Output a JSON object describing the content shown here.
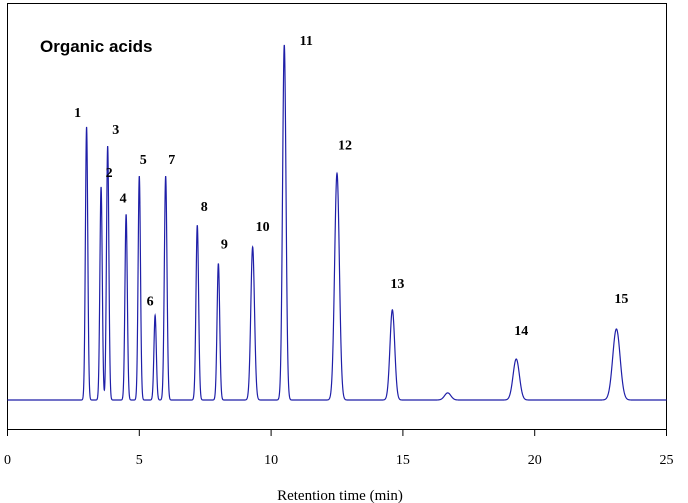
{
  "chart_data": {
    "type": "line",
    "title": "Organic acids",
    "xlabel": "Retention time  (min)",
    "ylabel": "",
    "xlim": [
      0,
      25
    ],
    "ylim": [
      0,
      1.34
    ],
    "x_ticks": [
      "0",
      "5",
      "10",
      "15",
      "20",
      "25"
    ],
    "grid": false,
    "line_color": "#1f1fa8",
    "peaks": [
      {
        "label": "1",
        "x": 3.0,
        "height": 1.0,
        "width": 0.045
      },
      {
        "label": "2",
        "x": 3.55,
        "height": 0.78,
        "width": 0.045
      },
      {
        "label": "3",
        "x": 3.8,
        "height": 0.93,
        "width": 0.045
      },
      {
        "label": "4",
        "x": 4.5,
        "height": 0.68,
        "width": 0.045
      },
      {
        "label": "5",
        "x": 5.0,
        "height": 0.82,
        "width": 0.045
      },
      {
        "label": "6",
        "x": 5.6,
        "height": 0.31,
        "width": 0.045
      },
      {
        "label": "7",
        "x": 6.0,
        "height": 0.82,
        "width": 0.05
      },
      {
        "label": "8",
        "x": 7.2,
        "height": 0.64,
        "width": 0.05
      },
      {
        "label": "9",
        "x": 8.0,
        "height": 0.5,
        "width": 0.05
      },
      {
        "label": "10",
        "x": 9.3,
        "height": 0.56,
        "width": 0.07
      },
      {
        "label": "11",
        "x": 10.5,
        "height": 1.3,
        "width": 0.065
      },
      {
        "label": "12",
        "x": 12.5,
        "height": 0.83,
        "width": 0.09
      },
      {
        "label": "13",
        "x": 14.6,
        "height": 0.33,
        "width": 0.09
      },
      {
        "label": "",
        "x": 16.7,
        "height": 0.026,
        "width": 0.12
      },
      {
        "label": "14",
        "x": 19.3,
        "height": 0.15,
        "width": 0.12
      },
      {
        "label": "15",
        "x": 23.1,
        "height": 0.26,
        "width": 0.14
      }
    ]
  }
}
